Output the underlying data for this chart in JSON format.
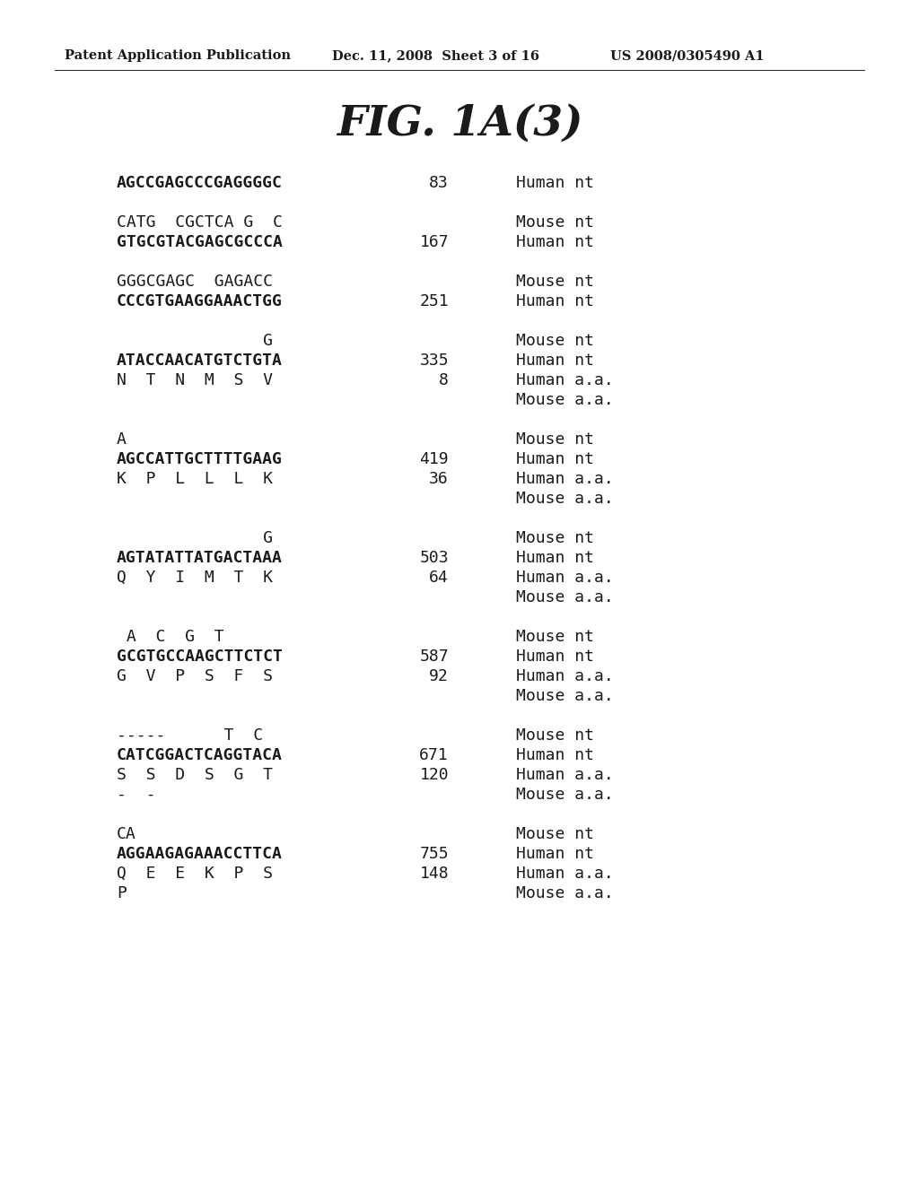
{
  "header_left": "Patent Application Publication",
  "header_mid": "Dec. 11, 2008  Sheet 3 of 16",
  "header_right": "US 2008/0305490 A1",
  "figure_title": "FIG. 1A(3)",
  "background_color": "#ffffff",
  "text_color": "#1a1a1a",
  "rows": [
    {
      "col1": "AGCCGAGCCCGAGGGGC",
      "col1_bold": true,
      "col2": "83",
      "col3": "Human nt",
      "col4": null
    },
    {
      "col1": null,
      "col1_bold": false,
      "col2": null,
      "col3": null,
      "col4": null
    },
    {
      "col1": "CATG  CGCTCA G  C",
      "col1_bold": false,
      "col2": null,
      "col3": "Mouse nt",
      "col4": null
    },
    {
      "col1": "GTGCGTACGAGCGCCCA",
      "col1_bold": true,
      "col2": "167",
      "col3": "Human nt",
      "col4": null
    },
    {
      "col1": null,
      "col1_bold": false,
      "col2": null,
      "col3": null,
      "col4": null
    },
    {
      "col1": "GGGCGAGC  GAGACC",
      "col1_bold": false,
      "col2": null,
      "col3": "Mouse nt",
      "col4": null
    },
    {
      "col1": "CCCGTGAAGGAAACTGG",
      "col1_bold": true,
      "col2": "251",
      "col3": "Human nt",
      "col4": null
    },
    {
      "col1": null,
      "col1_bold": false,
      "col2": null,
      "col3": null,
      "col4": null
    },
    {
      "col1": "               G",
      "col1_bold": false,
      "col2": null,
      "col3": "Mouse nt",
      "col4": null
    },
    {
      "col1": "ATACCAACATGTCTGTA",
      "col1_bold": true,
      "col2": "335",
      "col3": "Human nt",
      "col4": null
    },
    {
      "col1": "N  T  N  M  S  V",
      "col1_bold": false,
      "col2": "8",
      "col3": "Human a.a.",
      "col4": null
    },
    {
      "col1": null,
      "col1_bold": false,
      "col2": null,
      "col3": "Mouse a.a.",
      "col4": null
    },
    {
      "col1": null,
      "col1_bold": false,
      "col2": null,
      "col3": null,
      "col4": null
    },
    {
      "col1": "A",
      "col1_bold": false,
      "col2": null,
      "col3": "Mouse nt",
      "col4": null
    },
    {
      "col1": "AGCCATTGCTTTTGAAG",
      "col1_bold": true,
      "col2": "419",
      "col3": "Human nt",
      "col4": null
    },
    {
      "col1": "K  P  L  L  L  K",
      "col1_bold": false,
      "col2": "36",
      "col3": "Human a.a.",
      "col4": null
    },
    {
      "col1": null,
      "col1_bold": false,
      "col2": null,
      "col3": "Mouse a.a.",
      "col4": null
    },
    {
      "col1": null,
      "col1_bold": false,
      "col2": null,
      "col3": null,
      "col4": null
    },
    {
      "col1": "               G",
      "col1_bold": false,
      "col2": null,
      "col3": "Mouse nt",
      "col4": null
    },
    {
      "col1": "AGTATATTATGACTAAA",
      "col1_bold": true,
      "col2": "503",
      "col3": "Human nt",
      "col4": null
    },
    {
      "col1": "Q  Y  I  M  T  K",
      "col1_bold": false,
      "col2": "64",
      "col3": "Human a.a.",
      "col4": null
    },
    {
      "col1": null,
      "col1_bold": false,
      "col2": null,
      "col3": "Mouse a.a.",
      "col4": null
    },
    {
      "col1": null,
      "col1_bold": false,
      "col2": null,
      "col3": null,
      "col4": null
    },
    {
      "col1": " A  C  G  T",
      "col1_bold": false,
      "col2": null,
      "col3": "Mouse nt",
      "col4": null
    },
    {
      "col1": "GCGTGCCAAGCTTCTCT",
      "col1_bold": true,
      "col2": "587",
      "col3": "Human nt",
      "col4": null
    },
    {
      "col1": "G  V  P  S  F  S",
      "col1_bold": false,
      "col2": "92",
      "col3": "Human a.a.",
      "col4": null
    },
    {
      "col1": null,
      "col1_bold": false,
      "col2": null,
      "col3": "Mouse a.a.",
      "col4": null
    },
    {
      "col1": null,
      "col1_bold": false,
      "col2": null,
      "col3": null,
      "col4": null
    },
    {
      "col1": "-----      T  C",
      "col1_bold": false,
      "col2": null,
      "col3": "Mouse nt",
      "col4": null
    },
    {
      "col1": "CATCGGACTCAGGTACA",
      "col1_bold": true,
      "col2": "671",
      "col3": "Human nt",
      "col4": null
    },
    {
      "col1": "S  S  D  S  G  T",
      "col1_bold": false,
      "col2": "120",
      "col3": "Human a.a.",
      "col4": null
    },
    {
      "col1": "-  -",
      "col1_bold": false,
      "col2": null,
      "col3": "Mouse a.a.",
      "col4": null
    },
    {
      "col1": null,
      "col1_bold": false,
      "col2": null,
      "col3": null,
      "col4": null
    },
    {
      "col1": "CA",
      "col1_bold": false,
      "col2": null,
      "col3": "Mouse nt",
      "col4": null
    },
    {
      "col1": "AGGAAGAGAAACCTTCA",
      "col1_bold": true,
      "col2": "755",
      "col3": "Human nt",
      "col4": null
    },
    {
      "col1": "Q  E  E  K  P  S",
      "col1_bold": false,
      "col2": "148",
      "col3": "Human a.a.",
      "col4": null
    },
    {
      "col1": "P",
      "col1_bold": false,
      "col2": null,
      "col3": "Mouse a.a.",
      "col4": null
    }
  ]
}
